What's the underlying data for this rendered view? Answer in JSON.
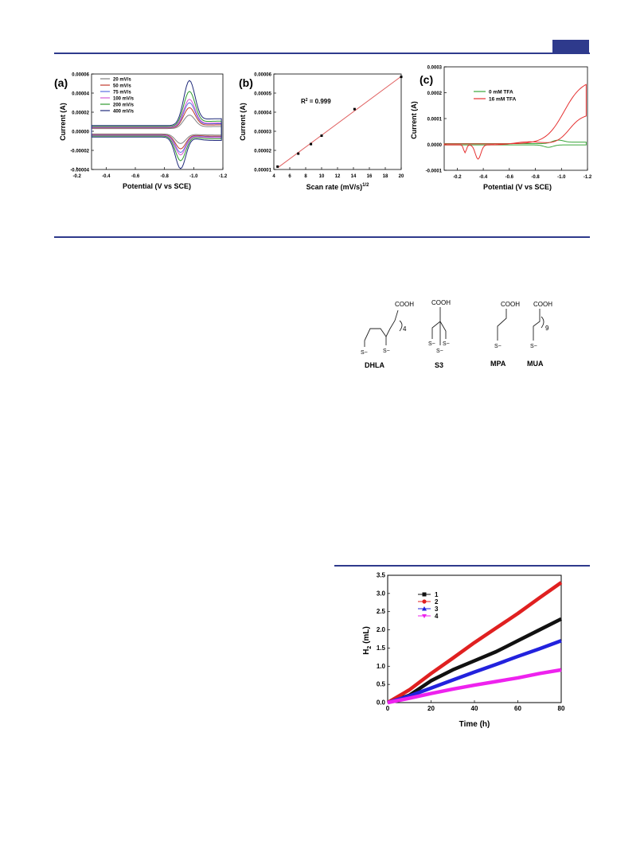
{
  "header": {
    "accent_color": "#2e3a8c"
  },
  "figure_cv": {
    "panels": [
      {
        "label": "(a)",
        "chart_data": {
          "type": "line",
          "xlabel": "Potential (V vs SCE)",
          "ylabel": "Current (A)",
          "xlim": [
            -0.3,
            -1.2
          ],
          "ylim": [
            -4e-05,
            6e-05
          ],
          "xticks": [
            "-0.2",
            "-0.4",
            "-0.6",
            "-0.8",
            "-1.0",
            "-1.2"
          ],
          "yticks": [
            "-0.00004",
            "-0.00002",
            "0.00000",
            "0.00002",
            "0.00004",
            "0.00006"
          ],
          "legend_position": "top-left",
          "series": [
            {
              "name": "20 mV/s",
              "color": "#808080",
              "scale": 0.3
            },
            {
              "name": "50 mV/s",
              "color": "#c0392b",
              "scale": 0.45
            },
            {
              "name": "75 mV/s",
              "color": "#5b6ee1",
              "scale": 0.55
            },
            {
              "name": "100 mV/s",
              "color": "#d35ad3",
              "scale": 0.62
            },
            {
              "name": "200 mV/s",
              "color": "#2e9a2e",
              "scale": 0.78
            },
            {
              "name": "400 mV/s",
              "color": "#1f2a7a",
              "scale": 1.0
            }
          ]
        }
      },
      {
        "label": "(b)",
        "chart_data": {
          "type": "scatter",
          "xlabel": "Scan rate (mV/s)",
          "xlabel_sup": "1/2",
          "ylabel": "Current (A)",
          "annotation": "R",
          "annotation_sup": "2",
          "annotation_rest": " = 0.999",
          "xlim": [
            4,
            20
          ],
          "ylim": [
            1e-05,
            6e-05
          ],
          "xticks": [
            "4",
            "6",
            "8",
            "10",
            "12",
            "14",
            "16",
            "18",
            "20"
          ],
          "yticks": [
            "0.00001",
            "0.00002",
            "0.00003",
            "0.00004",
            "0.00005",
            "0.00006"
          ],
          "x": [
            4.47,
            7.07,
            8.66,
            10.0,
            14.14,
            20.0
          ],
          "y": [
            1.15e-05,
            1.83e-05,
            2.33e-05,
            2.77e-05,
            4.16e-05,
            5.85e-05
          ],
          "fit_color": "#e06060"
        }
      },
      {
        "label": "(c)",
        "chart_data": {
          "type": "line",
          "xlabel": "Potential (V vs SCE)",
          "ylabel": "Current (A)",
          "xlim": [
            -0.1,
            -1.2
          ],
          "ylim": [
            -0.0001,
            0.0003
          ],
          "xticks": [
            "-0.2",
            "-0.4",
            "-0.6",
            "-0.8",
            "-1.0",
            "-1.2"
          ],
          "yticks": [
            "-0.0001",
            "0.0000",
            "0.0001",
            "0.0002",
            "0.0003"
          ],
          "legend_position": "top-left",
          "series": [
            {
              "name": "0 mM TFA",
              "color": "#3aa63a"
            },
            {
              "name": "16 mM TFA",
              "color": "#e53030"
            }
          ]
        }
      }
    ]
  },
  "ligands": {
    "names": [
      "DHLA",
      "S3",
      "MPA",
      "MUA"
    ],
    "cooh": "COOH",
    "thiolate": "S−",
    "dhla_subscript": "4",
    "mua_subscript": "9"
  },
  "h2_figure": {
    "chart_data": {
      "type": "scatter",
      "xlabel": "Time (h)",
      "ylabel": "H",
      "ylabel_sub": "2",
      "ylabel_rest": " (mL)",
      "xlim": [
        0,
        80
      ],
      "ylim": [
        0,
        3.5
      ],
      "xticks": [
        "0",
        "20",
        "40",
        "60",
        "80"
      ],
      "yticks": [
        "0.0",
        "0.5",
        "1.0",
        "1.5",
        "2.0",
        "2.5",
        "3.0",
        "3.5"
      ],
      "legend_position": "top-left",
      "series": [
        {
          "name": "1",
          "color": "#111111",
          "marker": "square",
          "x": [
            0,
            10,
            20,
            30,
            40,
            50,
            60,
            70,
            80
          ],
          "y": [
            0,
            0.2,
            0.6,
            0.9,
            1.15,
            1.4,
            1.7,
            2.0,
            2.3
          ]
        },
        {
          "name": "2",
          "color": "#e02020",
          "marker": "circle",
          "x": [
            0,
            10,
            20,
            30,
            40,
            50,
            60,
            70,
            80
          ],
          "y": [
            0,
            0.35,
            0.8,
            1.22,
            1.65,
            2.05,
            2.45,
            2.88,
            3.3
          ]
        },
        {
          "name": "3",
          "color": "#2222dd",
          "marker": "triangle",
          "x": [
            0,
            10,
            20,
            30,
            40,
            50,
            60,
            70,
            80
          ],
          "y": [
            0,
            0.18,
            0.4,
            0.62,
            0.84,
            1.05,
            1.27,
            1.48,
            1.7
          ]
        },
        {
          "name": "4",
          "color": "#ee22ee",
          "marker": "diamond",
          "x": [
            0,
            10,
            20,
            30,
            40,
            50,
            60,
            70,
            80
          ],
          "y": [
            0,
            0.12,
            0.25,
            0.37,
            0.48,
            0.58,
            0.68,
            0.8,
            0.9
          ]
        }
      ]
    }
  }
}
